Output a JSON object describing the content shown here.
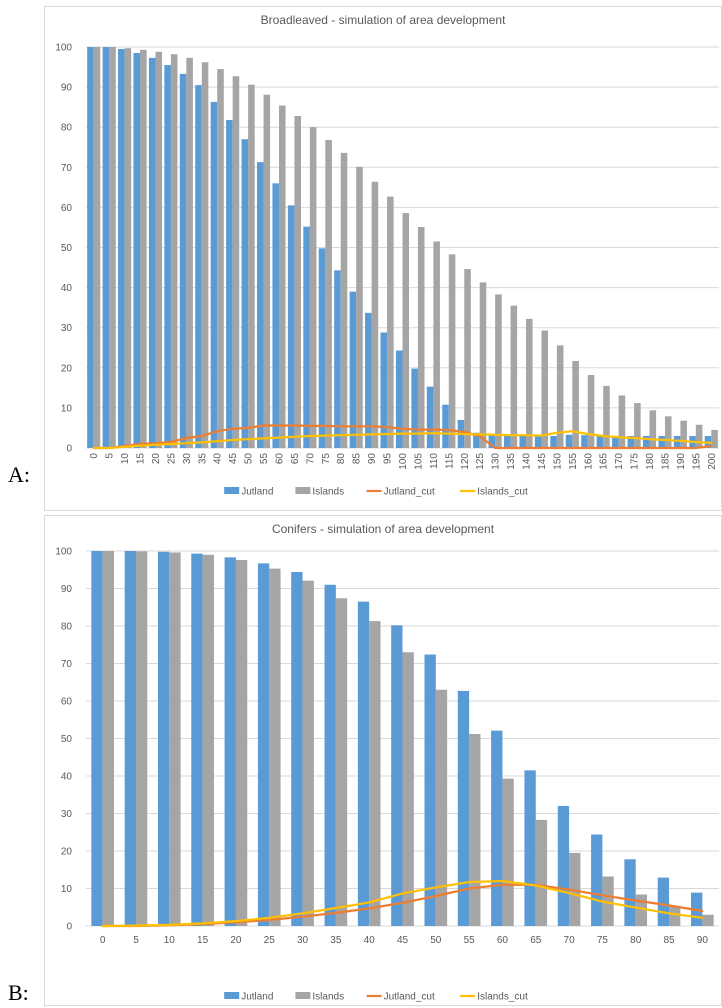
{
  "panels": [
    {
      "label": "A:"
    },
    {
      "label": "B:"
    }
  ],
  "colors": {
    "jutland": "#5b9bd5",
    "islands": "#a5a5a5",
    "jutland_cut": "#ed7d31",
    "islands_cut": "#ffc000",
    "grid": "#d9d9d9",
    "text": "#595959"
  },
  "chart_data": [
    {
      "type": "bar",
      "title": "Broadleaved - simulation of area development",
      "xlabel": "",
      "ylabel": "",
      "ylim": [
        0,
        100
      ],
      "yticks": [
        0,
        10,
        20,
        30,
        40,
        50,
        60,
        70,
        80,
        90,
        100
      ],
      "grid": true,
      "legend_position": "bottom",
      "categories": [
        "0",
        "5",
        "10",
        "15",
        "20",
        "25",
        "30",
        "35",
        "40",
        "45",
        "50",
        "55",
        "60",
        "65",
        "70",
        "75",
        "80",
        "85",
        "90",
        "95",
        "100",
        "105",
        "110",
        "115",
        "120",
        "125",
        "130",
        "135",
        "140",
        "145",
        "150",
        "155",
        "160",
        "165",
        "170",
        "175",
        "180",
        "185",
        "190",
        "195",
        "200"
      ],
      "series": [
        {
          "name": "Jutland",
          "kind": "bar",
          "values": [
            100,
            100,
            99.5,
            98.5,
            97.3,
            95.5,
            93.3,
            90.5,
            86.3,
            81.8,
            77,
            71.3,
            66,
            60.5,
            55.2,
            49.8,
            44.3,
            39,
            33.7,
            28.8,
            24.3,
            19.8,
            15.3,
            10.8,
            7,
            3.8,
            3.4,
            3.3,
            3.2,
            3.1,
            3,
            3.3,
            3.2,
            3.1,
            3,
            3,
            3,
            3,
            3,
            3,
            3
          ]
        },
        {
          "name": "Islands",
          "kind": "bar",
          "values": [
            100,
            100,
            99.7,
            99.3,
            98.8,
            98.2,
            97.3,
            96.2,
            94.5,
            92.7,
            90.6,
            88.1,
            85.4,
            82.8,
            80,
            76.8,
            73.6,
            70.1,
            66.4,
            62.7,
            58.6,
            55.1,
            51.5,
            48.3,
            44.6,
            41.3,
            38.3,
            35.5,
            32.2,
            29.3,
            25.6,
            21.7,
            18.2,
            15.5,
            13.1,
            11.2,
            9.4,
            7.9,
            6.8,
            5.8,
            4.5
          ]
        },
        {
          "name": "Jutland_cut",
          "kind": "line",
          "values": [
            0,
            0,
            0.5,
            1,
            1.2,
            1.5,
            2.5,
            3,
            4.2,
            4.8,
            5,
            5.6,
            5.6,
            5.6,
            5.5,
            5.5,
            5.4,
            5.4,
            5.4,
            5.2,
            4.8,
            4.6,
            4.6,
            4.5,
            4,
            3,
            0,
            0,
            0,
            0,
            0,
            0,
            0,
            0,
            0,
            0,
            0,
            0,
            0,
            0,
            0.5
          ]
        },
        {
          "name": "Islands_cut",
          "kind": "line",
          "values": [
            0,
            0,
            0.3,
            0.6,
            0.8,
            1,
            1.2,
            1.4,
            1.7,
            2,
            2.2,
            2.4,
            2.6,
            2.8,
            3,
            3.1,
            3.2,
            3.3,
            3.4,
            3.5,
            3.6,
            3.6,
            3.7,
            3.6,
            3.5,
            3.4,
            3.3,
            3.2,
            3.2,
            3.1,
            3.8,
            4.2,
            3.5,
            3,
            2.7,
            2.5,
            2.2,
            2,
            1.8,
            1.5,
            1.3
          ]
        }
      ]
    },
    {
      "type": "bar",
      "title": "Conifers - simulation of area development",
      "xlabel": "",
      "ylabel": "",
      "ylim": [
        0,
        100
      ],
      "yticks": [
        0,
        10,
        20,
        30,
        40,
        50,
        60,
        70,
        80,
        90,
        100
      ],
      "grid": true,
      "legend_position": "bottom",
      "categories": [
        "0",
        "5",
        "10",
        "15",
        "20",
        "25",
        "30",
        "35",
        "40",
        "45",
        "50",
        "55",
        "60",
        "65",
        "70",
        "75",
        "80",
        "85",
        "90"
      ],
      "series": [
        {
          "name": "Jutland",
          "kind": "bar",
          "values": [
            100,
            100,
            99.8,
            99.3,
            98.3,
            96.7,
            94.4,
            91,
            86.5,
            80.2,
            72.4,
            62.7,
            52.1,
            41.5,
            32,
            24.4,
            17.8,
            12.9,
            8.9
          ]
        },
        {
          "name": "Islands",
          "kind": "bar",
          "values": [
            100,
            99.9,
            99.6,
            99,
            97.6,
            95.3,
            92.1,
            87.4,
            81.3,
            73,
            63,
            51.2,
            39.3,
            28.3,
            19.5,
            13.2,
            8.4,
            5.3,
            3
          ]
        },
        {
          "name": "Jutland_cut",
          "kind": "line",
          "values": [
            0,
            0,
            0.2,
            0.5,
            1,
            1.6,
            2.5,
            3.5,
            4.7,
            6.2,
            8,
            10,
            11,
            11,
            9.7,
            8.2,
            6.8,
            5.5,
            4
          ]
        },
        {
          "name": "Islands_cut",
          "kind": "line",
          "values": [
            0,
            0.1,
            0.3,
            0.7,
            1.3,
            2.2,
            3.4,
            4.8,
            6.3,
            8.7,
            10.3,
            11.7,
            12,
            10.8,
            8.8,
            6.5,
            4.9,
            3.4,
            2.2
          ]
        }
      ]
    }
  ]
}
